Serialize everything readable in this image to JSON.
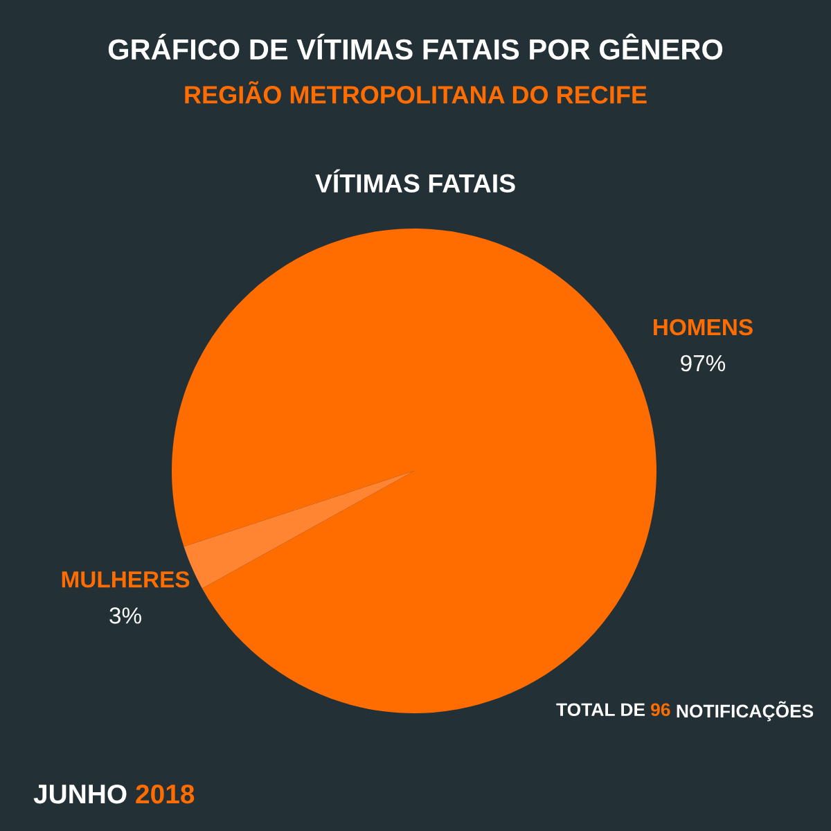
{
  "chart_data": {
    "type": "pie",
    "title": "GRÁFICO DE VÍTIMAS FATAIS POR GÊNERO",
    "subtitle": "REGIÃO METROPOLITANA DO RECIFE",
    "categories": [
      "HOMENS",
      "MULHERES"
    ],
    "values": [
      97,
      3
    ],
    "colors": [
      "#ff6c00",
      "#ff8533"
    ],
    "value_labels": [
      "97%",
      "3%"
    ],
    "annotations": [
      "VÍTIMAS FATAIS",
      "TOTAL DE 96 NOTIFICAÇÕES",
      "JUNHO 2018"
    ]
  }
}
